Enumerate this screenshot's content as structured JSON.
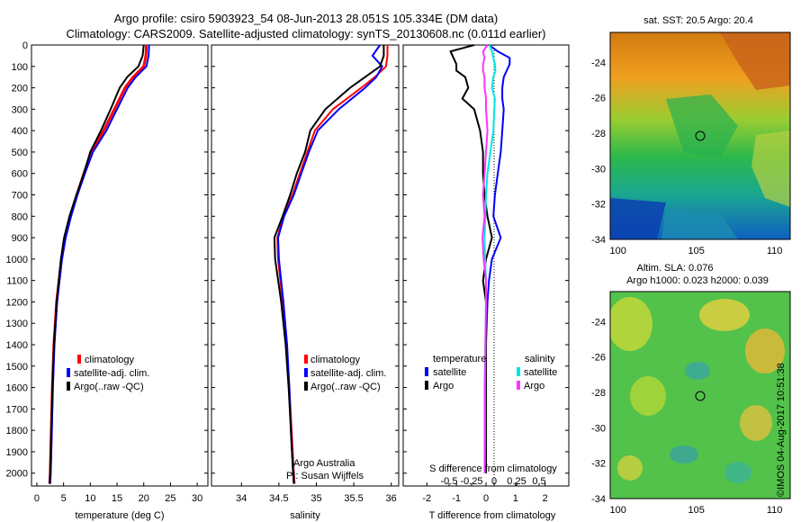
{
  "header": {
    "title_line1": "Argo profile: csiro 5903923_54 08-Jun-2013 28.051S 105.334E (DM data)",
    "title_line2": "Climatology: CARS2009. Satellite-adjusted climatology: synTS_20130608.nc (0.011d earlier)"
  },
  "colors": {
    "climatology": "#ff0000",
    "satellite_adj": "#0000ff",
    "argo": "#000000",
    "salinity_satellite": "#00e5e5",
    "salinity_argo": "#ff33ff"
  },
  "chart_data": [
    {
      "type": "line",
      "panel": "temperature",
      "xlabel": "temperature (deg C)",
      "xlim": [
        -1,
        32
      ],
      "xticks": [
        0,
        5,
        10,
        15,
        20,
        25,
        30
      ],
      "ylim": [
        2060,
        0
      ],
      "yticks": [
        0,
        100,
        200,
        300,
        400,
        500,
        600,
        700,
        800,
        900,
        1000,
        1100,
        1200,
        1300,
        1400,
        1500,
        1600,
        1700,
        1800,
        1900,
        2000
      ],
      "depth": [
        0,
        50,
        100,
        150,
        200,
        300,
        400,
        500,
        600,
        700,
        800,
        900,
        1000,
        1200,
        1400,
        1600,
        1800,
        2000,
        2050
      ],
      "series": [
        {
          "name": "climatology",
          "values": [
            20.5,
            20.4,
            20.0,
            18.0,
            16.5,
            14.5,
            12.5,
            10.2,
            8.8,
            7.5,
            6.3,
            5.3,
            4.6,
            3.7,
            3.2,
            2.9,
            2.7,
            2.5,
            2.4
          ]
        },
        {
          "name": "satellite-adj. clim.",
          "values": [
            21.0,
            20.9,
            20.5,
            18.5,
            17.0,
            15.0,
            13.0,
            10.5,
            9.0,
            7.6,
            6.4,
            5.4,
            4.7,
            3.8,
            3.3,
            3.0,
            2.8,
            2.6,
            2.5
          ]
        },
        {
          "name": "Argo(..raw -QC)",
          "values": [
            20.0,
            19.8,
            19.0,
            16.9,
            15.5,
            13.8,
            12.0,
            10.0,
            8.8,
            7.4,
            6.1,
            5.1,
            4.5,
            3.7,
            3.2,
            2.9,
            2.7,
            2.5,
            2.4
          ]
        }
      ],
      "legend_entries": [
        "climatology",
        "satellite-adj. clim.",
        "Argo(..raw -QC)"
      ]
    },
    {
      "type": "line",
      "panel": "salinity",
      "xlabel": "salinity",
      "xlim": [
        33.6,
        36.1
      ],
      "xticks": [
        34,
        34.5,
        35,
        35.5,
        36
      ],
      "ylim": [
        2060,
        0
      ],
      "depth": [
        0,
        50,
        100,
        150,
        200,
        300,
        400,
        500,
        600,
        700,
        800,
        900,
        1000,
        1200,
        1400,
        1600,
        1800,
        2000,
        2050
      ],
      "series": [
        {
          "name": "climatology",
          "values": [
            35.95,
            35.95,
            35.93,
            35.78,
            35.6,
            35.22,
            34.98,
            34.88,
            34.78,
            34.68,
            34.56,
            34.48,
            34.49,
            34.55,
            34.6,
            34.64,
            34.67,
            34.7,
            34.71
          ]
        },
        {
          "name": "satellite-adj. clim.",
          "values": [
            35.85,
            35.75,
            35.88,
            35.8,
            35.65,
            35.3,
            35.02,
            34.9,
            34.8,
            34.7,
            34.57,
            34.49,
            34.5,
            34.56,
            34.61,
            34.64,
            34.66,
            34.69,
            34.7
          ]
        },
        {
          "name": "Argo(..raw -QC)",
          "values": [
            35.9,
            35.9,
            35.85,
            35.65,
            35.45,
            35.12,
            34.92,
            34.85,
            34.74,
            34.65,
            34.55,
            34.44,
            34.45,
            34.53,
            34.59,
            34.63,
            34.66,
            34.69,
            34.7
          ]
        }
      ],
      "legend_entries": [
        "climatology",
        "satellite-adj. clim.",
        "Argo(..raw -QC)"
      ],
      "annotation_line1": "Argo Australia",
      "annotation_line2": "PI: Susan Wijffels"
    },
    {
      "type": "line",
      "panel": "difference",
      "xlabel": "T difference from climatology",
      "xlabel_top": "S difference from climatology",
      "xlim": [
        -2.8,
        2.8
      ],
      "xticks": [
        -2,
        -1,
        0,
        1,
        2
      ],
      "xticks_top": [
        -0.5,
        -0.25,
        0,
        0.25,
        0.5
      ],
      "ylim": [
        2060,
        0
      ],
      "depth": [
        0,
        30,
        60,
        90,
        120,
        150,
        200,
        250,
        300,
        400,
        500,
        600,
        700,
        800,
        900,
        1000,
        1100,
        1200,
        1400,
        1600,
        1800,
        2000
      ],
      "series": [
        {
          "name": "temperature satellite",
          "values": [
            0.1,
            0.4,
            0.8,
            0.8,
            0.7,
            0.6,
            0.55,
            0.55,
            0.6,
            0.55,
            0.5,
            0.4,
            0.3,
            0.25,
            0.5,
            0.2,
            0.1,
            0.05,
            0.0,
            0.0,
            0.0,
            0.0
          ]
        },
        {
          "name": "temperature Argo",
          "values": [
            -0.4,
            -1.2,
            -1.1,
            -1.0,
            -1.0,
            -0.7,
            -0.6,
            -0.8,
            -0.4,
            -0.2,
            -0.1,
            -0.1,
            -0.05,
            0.05,
            0.2,
            0.0,
            -0.1,
            0.0,
            0.0,
            0.0,
            0.0,
            0.0
          ]
        },
        {
          "name": "salinity satellite",
          "values": [
            0.12,
            0.2,
            0.25,
            0.3,
            0.32,
            0.25,
            0.2,
            0.3,
            0.28,
            0.25,
            0.15,
            0.05,
            0.0,
            -0.02,
            -0.05,
            -0.03,
            0.0,
            0.0,
            -0.02,
            -0.05,
            -0.05,
            -0.05
          ]
        },
        {
          "name": "salinity Argo",
          "values": [
            0.05,
            -0.1,
            -0.05,
            -0.1,
            -0.1,
            -0.05,
            -0.05,
            0.0,
            0.0,
            0.05,
            0.0,
            -0.05,
            -0.1,
            -0.05,
            -0.12,
            -0.08,
            0.0,
            0.0,
            -0.02,
            -0.03,
            -0.03,
            -0.04
          ]
        }
      ],
      "legend": {
        "temperature_header": "temperature",
        "salinity_header": "salinity",
        "entries": [
          "satellite",
          "Argo",
          "satellite",
          "Argo"
        ]
      }
    },
    {
      "type": "heatmap",
      "panel": "sst_map",
      "title": "sat. SST: 20.5 Argo: 20.4",
      "xlim": [
        99.5,
        111
      ],
      "ylim": [
        -34,
        -22.3
      ],
      "xticks": [
        100,
        105,
        110
      ],
      "yticks": [
        -24,
        -26,
        -28,
        -30,
        -32,
        -34
      ],
      "marker": {
        "lon": 105.334,
        "lat": -28.051
      }
    },
    {
      "type": "heatmap",
      "panel": "sla_map",
      "title_line1": "Altim. SLA: 0.076",
      "title_line2": "Argo h1000: 0.023 h2000: 0.039",
      "xlim": [
        99.5,
        111
      ],
      "ylim": [
        -34,
        -22.3
      ],
      "xticks": [
        100,
        105,
        110
      ],
      "yticks": [
        -24,
        -26,
        -28,
        -30,
        -32,
        -34
      ],
      "marker": {
        "lon": 105.334,
        "lat": -28.051
      }
    }
  ],
  "stamp": "©IMOS 04-Aug-2017 10:51:38"
}
